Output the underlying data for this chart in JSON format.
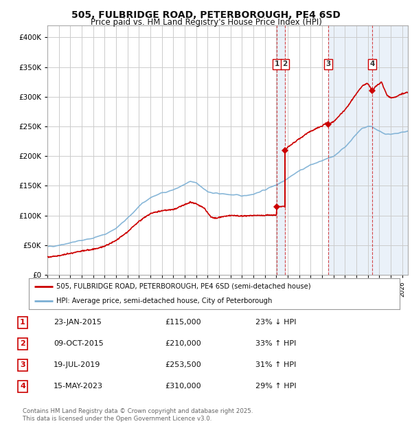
{
  "title_line1": "505, FULBRIDGE ROAD, PETERBOROUGH, PE4 6SD",
  "title_line2": "Price paid vs. HM Land Registry's House Price Index (HPI)",
  "background_color": "#ffffff",
  "plot_bg_color": "#ffffff",
  "grid_color": "#cccccc",
  "sale_color": "#cc0000",
  "hpi_color": "#7bafd4",
  "dashed_vline_color": "#cc0000",
  "shade_color": "#dce8f5",
  "legend_sale_label": "505, FULBRIDGE ROAD, PETERBOROUGH, PE4 6SD (semi-detached house)",
  "legend_hpi_label": "HPI: Average price, semi-detached house, City of Peterborough",
  "footer_line1": "Contains HM Land Registry data © Crown copyright and database right 2025.",
  "footer_line2": "This data is licensed under the Open Government Licence v3.0.",
  "transactions": [
    {
      "num": 1,
      "date_num": 2015.06,
      "price": 115000,
      "label": "1",
      "date_str": "23-JAN-2015"
    },
    {
      "num": 2,
      "date_num": 2015.77,
      "price": 210000,
      "label": "2",
      "date_str": "09-OCT-2015"
    },
    {
      "num": 3,
      "date_num": 2019.55,
      "price": 253500,
      "label": "3",
      "date_str": "19-JUL-2019"
    },
    {
      "num": 4,
      "date_num": 2023.37,
      "price": 310000,
      "label": "4",
      "date_str": "15-MAY-2023"
    }
  ],
  "table_rows": [
    {
      "num": "1",
      "date": "23-JAN-2015",
      "price": "£115,000",
      "info": "23% ↓ HPI"
    },
    {
      "num": "2",
      "date": "09-OCT-2015",
      "price": "£210,000",
      "info": "33% ↑ HPI"
    },
    {
      "num": "3",
      "date": "19-JUL-2019",
      "price": "£253,500",
      "info": "31% ↑ HPI"
    },
    {
      "num": "4",
      "date": "15-MAY-2023",
      "price": "£310,000",
      "info": "29% ↑ HPI"
    }
  ],
  "xlim_start": 1995.0,
  "xlim_end": 2026.5,
  "ylim_min": 0,
  "ylim_max": 420000
}
